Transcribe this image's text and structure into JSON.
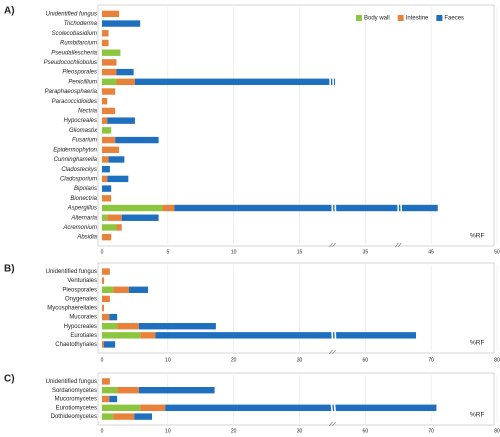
{
  "chart_data": [
    {
      "type": "bar",
      "orientation": "horizontal",
      "stacked": true,
      "panel_label": "A)",
      "xlabel": "%RF",
      "italic_categories": true,
      "legend": "upper right",
      "grid": true,
      "categories": [
        "Unidentified fungus",
        "Trichoderma",
        "Scolecobasidium",
        "Rumbifarcium",
        "Pseudallescheria",
        "Pseudocochliobolus",
        "Pleosporales",
        "Penicillium",
        "Paraphaeosphaeria",
        "Paracoccidioides",
        "Nectria",
        "Hypocreales",
        "Gliomastix",
        "Fusarium",
        "Epidermophyton",
        "Cunninghamella",
        "Cladosteckys",
        "Cladosporium",
        "Bipolaris",
        "Bionectria",
        "Aspergillus",
        "Alternaria",
        "Acremonium",
        "Absidia"
      ],
      "series": [
        {
          "name": "Body wall",
          "color": "#8cc63f",
          "values": [
            0,
            0,
            0,
            0,
            1.4,
            0,
            0,
            1.1,
            0,
            0,
            0,
            0,
            0.7,
            0,
            0,
            0,
            0,
            0,
            0,
            0,
            4.6,
            0.4,
            1.1,
            0
          ]
        },
        {
          "name": "Intestine",
          "color": "#e8823a",
          "values": [
            1.3,
            0,
            0.5,
            0.5,
            0,
            1.1,
            1.1,
            1.4,
            1.0,
            0.4,
            1.0,
            0.4,
            0,
            1.0,
            1.3,
            0.5,
            0,
            0.4,
            0,
            0.7,
            0.9,
            1.1,
            0.4,
            0.7
          ]
        },
        {
          "name": "Faeces",
          "color": "#1f6fbf",
          "values": [
            0,
            2.9,
            0,
            0,
            0,
            0,
            1.3,
            23.3,
            0,
            0,
            0,
            2.1,
            0,
            3.3,
            0,
            1.2,
            0.6,
            1.6,
            0.7,
            0,
            40.0,
            2.8,
            0,
            0
          ]
        }
      ],
      "xlim": [
        0,
        50
      ],
      "xticks": [
        0,
        5,
        10,
        15,
        35,
        45,
        50
      ]
    },
    {
      "type": "bar",
      "orientation": "horizontal",
      "stacked": true,
      "panel_label": "B)",
      "xlabel": "%RF",
      "italic_categories": false,
      "grid": true,
      "categories": [
        "Unidentified fungus",
        "Venturiales",
        "Pleosporales",
        "Onygenales",
        "Mycosphaerellales",
        "Mucorales",
        "Hypocreales",
        "Eurotiales",
        "Chaetothyriales"
      ],
      "series": [
        {
          "color": "#8cc63f",
          "values": [
            0,
            0,
            1.7,
            0,
            0,
            0,
            2.3,
            5.8,
            0
          ]
        },
        {
          "color": "#e8823a",
          "values": [
            1.2,
            0.3,
            2.4,
            1.2,
            0.3,
            1.1,
            3.3,
            2.3,
            0.3
          ]
        },
        {
          "color": "#1f6fbf",
          "values": [
            0,
            0,
            2.9,
            0,
            0,
            1.2,
            11.7,
            59.6,
            1.7
          ]
        }
      ],
      "xlim": [
        0,
        80
      ],
      "xticks": [
        0,
        10,
        20,
        30,
        60,
        70,
        80
      ]
    },
    {
      "type": "bar",
      "orientation": "horizontal",
      "stacked": true,
      "panel_label": "C)",
      "xlabel": "%RF",
      "italic_categories": false,
      "grid": true,
      "categories": [
        "Unidentified fungus",
        "Sordariomycetes",
        "Mucoromycetes",
        "Eurotiomycetes",
        "Dothideomycetes"
      ],
      "series": [
        {
          "color": "#8cc63f",
          "values": [
            0,
            2.3,
            0,
            5.8,
            1.7
          ]
        },
        {
          "color": "#e8823a",
          "values": [
            1.2,
            3.3,
            1.1,
            3.8,
            3.2
          ]
        },
        {
          "color": "#1f6fbf",
          "values": [
            0,
            11.5,
            1.2,
            61.2,
            2.7
          ]
        }
      ],
      "xlim": [
        0,
        80
      ],
      "xticks": [
        0,
        10,
        20,
        30,
        60,
        70,
        80
      ]
    }
  ]
}
